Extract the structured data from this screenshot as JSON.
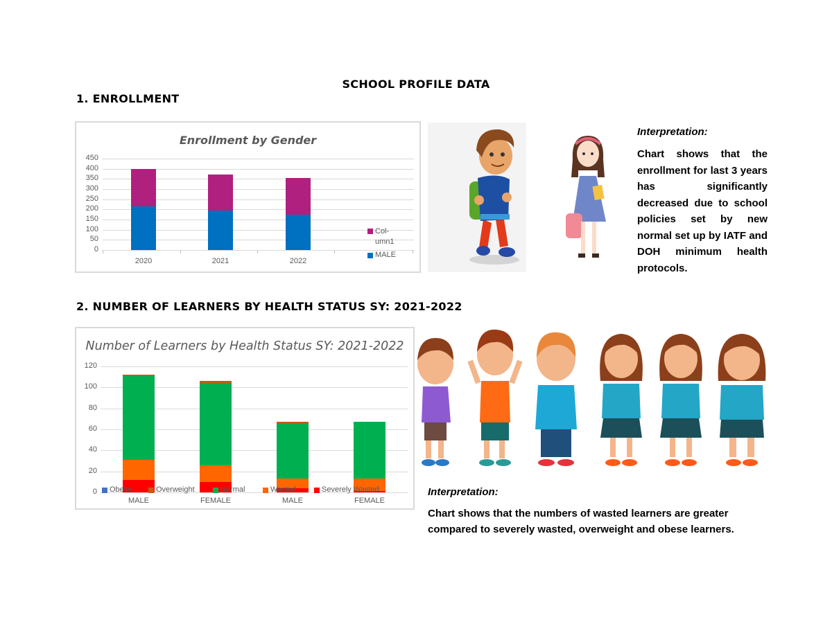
{
  "document": {
    "title": "SCHOOL PROFILE DATA",
    "section1_heading": "1. ENROLLMENT",
    "section2_heading": "2. NUMBER OF LEARNERS BY HEALTH STATUS SY: 2021-2022",
    "interpretation1": {
      "title": "Interpretation:",
      "body": "Chart shows that the enrollment for last 3 years has significantly decreased due to school policies set by new normal set up by IATF and DOH minimum health protocols."
    },
    "interpretation2": {
      "title": "Interpretation:",
      "body": "Chart shows that the numbers of wasted learners are greater compared to severely wasted, overweight and obese learners."
    },
    "illustrations": {
      "boy_with_backpack": "cartoon-boy-walking-with-backpack",
      "girl_with_bag": "cartoon-girl-holding-bag-and-book",
      "children_row": [
        "sad-boy-purple-shirt",
        "happy-boy-orange-shirt",
        "surprised-chubby-boy-blue-shirt",
        "sad-girl-teal-shirt",
        "happy-girl-teal-shirt",
        "surprised-chubby-girl-teal-shirt"
      ]
    }
  },
  "colors": {
    "male_blue": "#0070c0",
    "column1_magenta": "#b0207e",
    "obese": "#4472c4",
    "overweight": "#c55a11",
    "normal": "#00b050",
    "wasted": "#ff6600",
    "severely_wasted": "#ff0000",
    "grid": "#d9d9d9",
    "axis_text": "#595959"
  },
  "chart_data": [
    {
      "type": "bar",
      "stacked": true,
      "title": "Enrollment by Gender",
      "xlabel": "",
      "ylabel": "",
      "categories": [
        "2020",
        "2021",
        "2022"
      ],
      "series": [
        {
          "name": "MALE",
          "color": "#0070c0",
          "values": [
            214,
            195,
            175
          ]
        },
        {
          "name": "Col-umn1",
          "color": "#b0207e",
          "values": [
            186,
            178,
            180
          ]
        }
      ],
      "totals": [
        400,
        373,
        355
      ],
      "ylim": [
        0,
        450
      ],
      "yticks": [
        0,
        50,
        100,
        150,
        200,
        250,
        300,
        350,
        400,
        450
      ],
      "grid": true,
      "legend_position": "right",
      "legend": [
        "Col-umn1",
        "MALE"
      ]
    },
    {
      "type": "bar",
      "stacked": true,
      "title": "Number of Learners by Health Status SY: 2021-2022",
      "xlabel": "",
      "ylabel": "",
      "categories": [
        "MALE",
        "FEMALE",
        "MALE",
        "FEMALE"
      ],
      "series": [
        {
          "name": "Severely Wasted",
          "color": "#ff0000",
          "values": [
            12,
            10,
            4,
            1
          ]
        },
        {
          "name": "Wasted",
          "color": "#ff6600",
          "values": [
            19,
            16,
            9,
            12
          ]
        },
        {
          "name": "Normal",
          "color": "#00b050",
          "values": [
            80,
            78,
            52,
            54
          ]
        },
        {
          "name": "Overweight",
          "color": "#c55a11",
          "values": [
            1,
            2,
            2,
            0
          ]
        },
        {
          "name": "Obese",
          "color": "#4472c4",
          "values": [
            0,
            0,
            0,
            0
          ]
        }
      ],
      "totals": [
        112,
        106,
        67,
        67
      ],
      "ylim": [
        0,
        120
      ],
      "yticks": [
        0,
        20,
        40,
        60,
        80,
        100,
        120
      ],
      "grid": true,
      "legend_position": "bottom (overlapping)",
      "legend": [
        "Obese",
        "Overweight",
        "Normal",
        "Wasted",
        "Severely Wasted"
      ]
    }
  ]
}
